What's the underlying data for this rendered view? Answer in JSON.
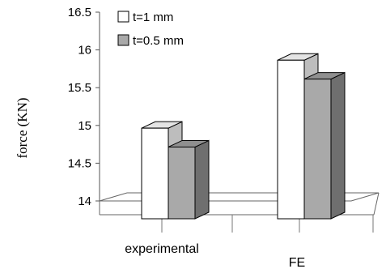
{
  "chart_data": {
    "type": "bar",
    "categories": [
      "experimental",
      "FE"
    ],
    "series": [
      {
        "name": "t=1 mm",
        "values": [
          15.2,
          16.1
        ]
      },
      {
        "name": "t=0.5 mm",
        "values": [
          14.95,
          15.85
        ]
      }
    ],
    "ylabel": "force (KN)",
    "xlabel": "",
    "ylim": [
      14,
      16.5
    ],
    "yticks": [
      "14",
      "14.5",
      "15",
      "15.5",
      "16",
      "16.5"
    ],
    "grid": false,
    "legend_position": "top-left",
    "style": "3d-clustered-column",
    "colors": {
      "t=1 mm": "#ffffff",
      "t=0.5 mm": "#a9a9a9"
    }
  }
}
